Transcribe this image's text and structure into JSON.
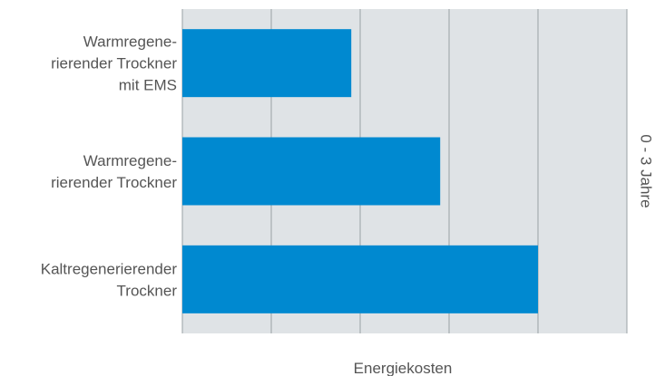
{
  "chart_data": {
    "type": "bar",
    "orientation": "horizontal",
    "categories": [
      [
        "Warmregene-",
        "rierender Trockner",
        "mit EMS"
      ],
      [
        "Warmregene-",
        "rierender Trockner"
      ],
      [
        "Kaltregenerierender",
        "Trockner"
      ]
    ],
    "values": [
      38,
      58,
      80
    ],
    "xlim": [
      0,
      100
    ],
    "xlabel": "Energiekosten",
    "right_label": "0 - 3 Jahre",
    "grid": true,
    "show_tick_labels": false,
    "colors": {
      "bar": "#0089d0",
      "plot_background": "#dfe3e6",
      "grid": "#9aa0a4"
    }
  }
}
